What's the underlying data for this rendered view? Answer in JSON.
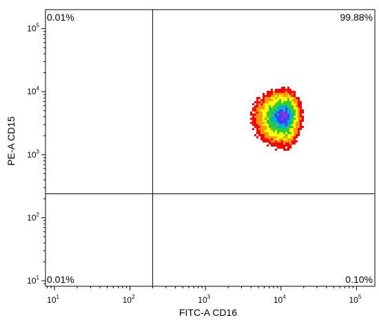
{
  "chart_data": {
    "type": "scatter",
    "subtype": "density-dot-plot",
    "xlabel": "FITC-A CD16",
    "ylabel": "PE-A CD15",
    "xscale": "log",
    "yscale": "log",
    "xlim": [
      7.6,
      175000
    ],
    "ylim": [
      8.2,
      200000
    ],
    "xticks": [
      10,
      100,
      1000,
      10000,
      100000
    ],
    "yticks": [
      10,
      100,
      1000,
      10000,
      100000
    ],
    "xtick_labels": [
      {
        "base": "10",
        "exp": "1"
      },
      {
        "base": "10",
        "exp": "2"
      },
      {
        "base": "10",
        "exp": "3"
      },
      {
        "base": "10",
        "exp": "4"
      },
      {
        "base": "10",
        "exp": "5"
      }
    ],
    "ytick_labels": [
      {
        "base": "10",
        "exp": "1"
      },
      {
        "base": "10",
        "exp": "2"
      },
      {
        "base": "10",
        "exp": "3"
      },
      {
        "base": "10",
        "exp": "4"
      },
      {
        "base": "10",
        "exp": "5"
      }
    ],
    "gates": {
      "x": 200,
      "y": 240
    },
    "quadrants": {
      "top_left": "0.01%",
      "top_right": "99.88%",
      "bottom_left": "0.01%",
      "bottom_right": "0.10%"
    },
    "population": {
      "center_x": 11000,
      "center_y": 4300,
      "x_range": [
        3900,
        19000
      ],
      "y_range": [
        1300,
        12000
      ]
    },
    "density_colors": [
      "#ff0000",
      "#ff9900",
      "#ffff00",
      "#33cc33",
      "#00b0d0",
      "#4040ff",
      "#9933cc"
    ]
  }
}
